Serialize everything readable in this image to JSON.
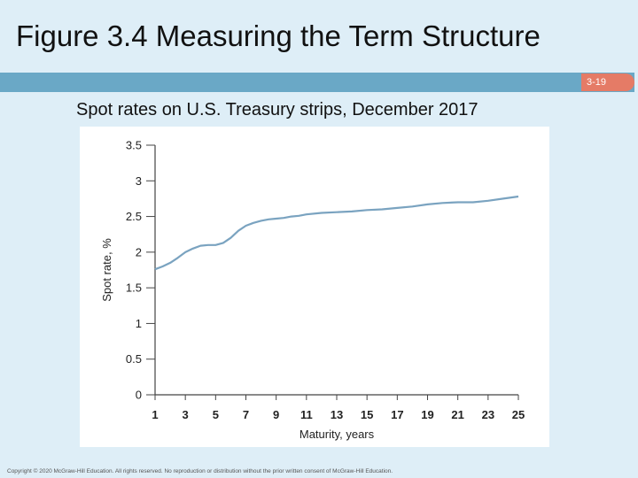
{
  "slide": {
    "title": "Figure 3.4 Measuring the Term Structure",
    "page_number": "3-19",
    "subtitle": "Spot rates on U.S. Treasury strips, December 2017",
    "copyright": "Copyright © 2020 McGraw-Hill Education. All rights reserved. No reproduction or distribution without the prior written consent of McGraw-Hill Education."
  },
  "colors": {
    "background": "#deeef7",
    "title_bar": "#6aa8c6",
    "page_badge": "#e57b66",
    "line": "#7aa3c0",
    "axis": "#444444"
  },
  "chart_data": {
    "type": "line",
    "title": "",
    "xlabel": "Maturity, years",
    "ylabel": "Spot rate, %",
    "xlim": [
      1,
      25
    ],
    "ylim": [
      0,
      3.5
    ],
    "x_ticks": [
      1,
      3,
      5,
      7,
      9,
      11,
      13,
      15,
      17,
      19,
      21,
      23,
      25
    ],
    "y_ticks": [
      {
        "value": 0,
        "label": "0"
      },
      {
        "value": 0.5,
        "label": "0.5"
      },
      {
        "value": 1,
        "label": "1"
      },
      {
        "value": 1.5,
        "label": "1.5"
      },
      {
        "value": 2,
        "label": "2"
      },
      {
        "value": 2.5,
        "label": "2.5"
      },
      {
        "value": 3,
        "label": "3"
      },
      {
        "value": 3.5,
        "label": "3.5"
      }
    ],
    "grid": false,
    "series": [
      {
        "x": [
          1,
          1.5,
          2,
          2.5,
          3,
          3.5,
          4,
          4.5,
          5,
          5.5,
          6,
          6.5,
          7,
          7.5,
          8,
          8.5,
          9,
          9.5,
          10,
          10.5,
          11,
          12,
          13,
          14,
          15,
          16,
          17,
          18,
          19,
          20,
          21,
          22,
          23,
          24,
          25
        ],
        "y": [
          1.76,
          1.8,
          1.85,
          1.92,
          2.0,
          2.05,
          2.09,
          2.1,
          2.1,
          2.13,
          2.2,
          2.3,
          2.37,
          2.41,
          2.44,
          2.46,
          2.47,
          2.48,
          2.5,
          2.51,
          2.53,
          2.55,
          2.56,
          2.57,
          2.59,
          2.6,
          2.62,
          2.64,
          2.67,
          2.69,
          2.7,
          2.7,
          2.72,
          2.75,
          2.78
        ]
      }
    ]
  }
}
